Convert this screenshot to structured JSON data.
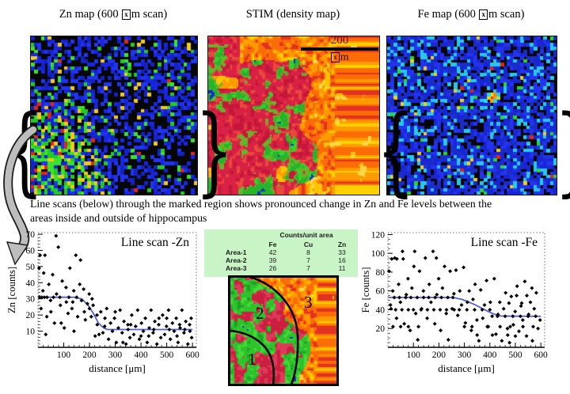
{
  "figure": {
    "maps": {
      "zn_title": {
        "pre": "Zn map  (600 ",
        "micro_box": "x",
        "post": "m scan)"
      },
      "stim_title": "STIM (density map)",
      "fe_title": {
        "pre": "Fe map  (600 ",
        "micro_box": "x",
        "post": "m scan)"
      },
      "scale_bar": {
        "value": "200",
        "micro_box": "x",
        "unit": "m"
      }
    },
    "braces": {
      "open": "{",
      "close": "}"
    },
    "caption_line1": "Line scans (below) through the marked region shows pronounced change in Zn and Fe levels between the",
    "caption_line2": "areas inside and outside of hippocampus",
    "area_table": {
      "title": "Counts/unit area",
      "columns": [
        "Fe",
        "Cu",
        "Zn"
      ],
      "rows": [
        {
          "label": "Area-1",
          "values": [
            42,
            8,
            33
          ]
        },
        {
          "label": "Area-2",
          "values": [
            39,
            7,
            16
          ]
        },
        {
          "label": "Area-3",
          "values": [
            26,
            7,
            11
          ]
        }
      ],
      "bg_color": "#c9f5c6"
    },
    "region_map": {
      "labels": [
        "1",
        "2",
        "3"
      ]
    }
  },
  "colors": {
    "marker": "#000000",
    "fit_line": "#5560d4",
    "table_bg": "#c9f5c6",
    "scalebar_number": "#6b1010",
    "map_border": "#111111"
  },
  "map_palettes": {
    "zn_map": {
      "background": "#060606",
      "blue": [
        "#1626e4",
        "#2134f2",
        "#1422c4"
      ],
      "green": [
        "#22cc22",
        "#3ce32e"
      ],
      "yellow": "#f2ca1c",
      "red": "#e4261a"
    },
    "fe_map": {
      "background": "#060606",
      "blue": [
        "#1724d8",
        "#2333f0",
        "#1b2cc8"
      ],
      "cyan": "#27c8e8",
      "green": "#2ad82a",
      "yellow": "#f0d020",
      "red": "#e02810",
      "hotspot": [
        "#ff2600",
        "#ff9900",
        "#ffe400",
        "#ff8400",
        "#ffd400",
        "#ffa000",
        "#bfe52a",
        "#2ad8e8",
        "#27c8e8"
      ]
    },
    "stim_map": {
      "crimson": [
        "#c21738",
        "#d92045",
        "#e84a3a"
      ],
      "green": [
        "#35d32e",
        "#27b32a",
        "#6faf28"
      ],
      "blue": "#1b2ad0",
      "orange": [
        "#e23222",
        "#fb6c07",
        "#ff9b00",
        "#ffd000",
        "#ffd84a",
        "#ffc400"
      ]
    },
    "region_map": {
      "crimson": [
        "#cc1f40",
        "#dd3a5a"
      ],
      "green": [
        "#2ec22c",
        "#46da36",
        "#1ea122"
      ],
      "blue": "#1b2ad0",
      "orange": [
        "#e23222",
        "#fb6c07",
        "#ff9b00",
        "#ffd000",
        "#ffd84a"
      ]
    }
  },
  "chart_data": [
    {
      "type": "scatter",
      "title": "Line scan -Zn",
      "xlabel": "distance [μm]",
      "ylabel": "Zn [counts]",
      "xlim": [
        0,
        615
      ],
      "ylim": [
        0,
        71
      ],
      "xticks": [
        100,
        200,
        300,
        400,
        500,
        600
      ],
      "yticks": [
        10,
        20,
        30,
        40,
        50,
        60,
        70
      ],
      "x_minor_step": 20,
      "y_minor_step": 2,
      "marker": "diamond",
      "points": [
        [
          4,
          49
        ],
        [
          12,
          24
        ],
        [
          19,
          35
        ],
        [
          27,
          57
        ],
        [
          34,
          19
        ],
        [
          42,
          39
        ],
        [
          49,
          29
        ],
        [
          57,
          45
        ],
        [
          64,
          15
        ],
        [
          70,
          69
        ],
        [
          72,
          33
        ],
        [
          79,
          62
        ],
        [
          87,
          26
        ],
        [
          94,
          41
        ],
        [
          102,
          12
        ],
        [
          109,
          37
        ],
        [
          117,
          21
        ],
        [
          124,
          49
        ],
        [
          132,
          24
        ],
        [
          139,
          35
        ],
        [
          140,
          10
        ],
        [
          147,
          57
        ],
        [
          154,
          19
        ],
        [
          162,
          39
        ],
        [
          165,
          54
        ],
        [
          169,
          29
        ],
        [
          177,
          36
        ],
        [
          184,
          17
        ],
        [
          192,
          27
        ],
        [
          199,
          33
        ],
        [
          207,
          19
        ],
        [
          210,
          30
        ],
        [
          214,
          26
        ],
        [
          222,
          7
        ],
        [
          229,
          20
        ],
        [
          237,
          8
        ],
        [
          244,
          22
        ],
        [
          252,
          9
        ],
        [
          259,
          13
        ],
        [
          267,
          24
        ],
        [
          274,
          5
        ],
        [
          282,
          15
        ],
        [
          289,
          10
        ],
        [
          297,
          18
        ],
        [
          304,
          3
        ],
        [
          312,
          12
        ],
        [
          319,
          23
        ],
        [
          327,
          9
        ],
        [
          334,
          16
        ],
        [
          342,
          2
        ],
        [
          349,
          14
        ],
        [
          357,
          6
        ],
        [
          364,
          20
        ],
        [
          372,
          8
        ],
        [
          379,
          13
        ],
        [
          387,
          23
        ],
        [
          394,
          5
        ],
        [
          402,
          15
        ],
        [
          409,
          10
        ],
        [
          417,
          18
        ],
        [
          424,
          3
        ],
        [
          432,
          12
        ],
        [
          439,
          23
        ],
        [
          447,
          9
        ],
        [
          454,
          16
        ],
        [
          462,
          2
        ],
        [
          469,
          14
        ],
        [
          477,
          6
        ],
        [
          484,
          20
        ],
        [
          492,
          8
        ],
        [
          499,
          13
        ],
        [
          507,
          23
        ],
        [
          514,
          5
        ],
        [
          522,
          15
        ],
        [
          529,
          10
        ],
        [
          537,
          18
        ],
        [
          544,
          3
        ],
        [
          552,
          12
        ],
        [
          559,
          23
        ],
        [
          567,
          9
        ],
        [
          574,
          16
        ],
        [
          582,
          2
        ],
        [
          589,
          14
        ],
        [
          597,
          6
        ],
        [
          30,
          8
        ],
        [
          22,
          46
        ],
        [
          8,
          57
        ],
        [
          6,
          31
        ],
        [
          15,
          31
        ],
        [
          25,
          31
        ],
        [
          35,
          31
        ],
        [
          50,
          22
        ],
        [
          60,
          31
        ],
        [
          85,
          31
        ],
        [
          110,
          28
        ],
        [
          120,
          31
        ],
        [
          135,
          28
        ],
        [
          150,
          31
        ],
        [
          90,
          15
        ],
        [
          180,
          22
        ],
        [
          200,
          24
        ],
        [
          230,
          14
        ],
        [
          260,
          18
        ],
        [
          300,
          22
        ],
        [
          350,
          11
        ],
        [
          400,
          7
        ],
        [
          450,
          11
        ],
        [
          500,
          18
        ],
        [
          550,
          14
        ],
        [
          590,
          10
        ],
        [
          595,
          18
        ],
        [
          330,
          3
        ],
        [
          360,
          14
        ],
        [
          430,
          7
        ],
        [
          470,
          18
        ],
        [
          510,
          11
        ],
        [
          540,
          7
        ],
        [
          570,
          11
        ]
      ],
      "fit_line": {
        "points": [
          [
            0,
            31
          ],
          [
            140,
            31
          ],
          [
            170,
            30
          ],
          [
            195,
            26
          ],
          [
            215,
            21
          ],
          [
            235,
            15
          ],
          [
            255,
            12
          ],
          [
            270,
            11
          ],
          [
            600,
            11
          ]
        ]
      }
    },
    {
      "type": "scatter",
      "title": "Line scan -Fe",
      "xlabel": "distance [μm]",
      "ylabel": "Fe [counts]",
      "xlim": [
        0,
        615
      ],
      "ylim": [
        0,
        122
      ],
      "xticks": [
        100,
        200,
        300,
        400,
        500,
        600
      ],
      "yticks": [
        20,
        40,
        60,
        80,
        100,
        120
      ],
      "x_minor_step": 20,
      "y_minor_step": 5,
      "marker": "diamond",
      "points": [
        [
          4,
          81
        ],
        [
          12,
          41
        ],
        [
          19,
          60
        ],
        [
          27,
          95
        ],
        [
          34,
          31
        ],
        [
          42,
          67
        ],
        [
          49,
          48
        ],
        [
          57,
          102
        ],
        [
          64,
          25
        ],
        [
          72,
          56
        ],
        [
          79,
          73
        ],
        [
          87,
          18
        ],
        [
          94,
          63
        ],
        [
          102,
          86
        ],
        [
          105,
          102
        ],
        [
          109,
          36
        ],
        [
          117,
          8
        ],
        [
          124,
          81
        ],
        [
          132,
          41
        ],
        [
          139,
          60
        ],
        [
          147,
          95
        ],
        [
          154,
          31
        ],
        [
          162,
          67
        ],
        [
          169,
          48
        ],
        [
          177,
          102
        ],
        [
          184,
          25
        ],
        [
          190,
          95
        ],
        [
          192,
          56
        ],
        [
          199,
          73
        ],
        [
          207,
          18
        ],
        [
          214,
          63
        ],
        [
          222,
          86
        ],
        [
          229,
          36
        ],
        [
          237,
          8
        ],
        [
          244,
          81
        ],
        [
          252,
          41
        ],
        [
          259,
          57
        ],
        [
          267,
          82
        ],
        [
          274,
          34
        ],
        [
          282,
          60
        ],
        [
          289,
          45
        ],
        [
          297,
          85
        ],
        [
          304,
          26
        ],
        [
          312,
          48
        ],
        [
          319,
          60
        ],
        [
          327,
          18
        ],
        [
          334,
          51
        ],
        [
          342,
          67
        ],
        [
          349,
          29
        ],
        [
          357,
          7
        ],
        [
          364,
          61
        ],
        [
          372,
          31
        ],
        [
          379,
          45
        ],
        [
          387,
          71
        ],
        [
          394,
          22
        ],
        [
          402,
          48
        ],
        [
          409,
          33
        ],
        [
          417,
          73
        ],
        [
          424,
          14
        ],
        [
          432,
          35
        ],
        [
          439,
          48
        ],
        [
          447,
          7
        ],
        [
          454,
          41
        ],
        [
          462,
          58
        ],
        [
          469,
          20
        ],
        [
          477,
          5
        ],
        [
          484,
          54
        ],
        [
          492,
          24
        ],
        [
          499,
          38
        ],
        [
          507,
          65
        ],
        [
          514,
          17
        ],
        [
          522,
          44
        ],
        [
          529,
          29
        ],
        [
          537,
          70
        ],
        [
          544,
          12
        ],
        [
          552,
          35
        ],
        [
          559,
          48
        ],
        [
          567,
          7
        ],
        [
          574,
          41
        ],
        [
          582,
          58
        ],
        [
          589,
          20
        ],
        [
          597,
          29
        ],
        [
          15,
          94
        ],
        [
          35,
          94
        ],
        [
          60,
          94
        ],
        [
          25,
          53
        ],
        [
          45,
          53
        ],
        [
          70,
          53
        ],
        [
          90,
          53
        ],
        [
          115,
          53
        ],
        [
          140,
          53
        ],
        [
          160,
          53
        ],
        [
          185,
          53
        ],
        [
          210,
          53
        ],
        [
          235,
          53
        ],
        [
          255,
          53
        ],
        [
          10,
          45
        ],
        [
          30,
          40
        ],
        [
          55,
          40
        ],
        [
          80,
          40
        ],
        [
          100,
          40
        ],
        [
          130,
          40
        ],
        [
          155,
          40
        ],
        [
          180,
          40
        ],
        [
          205,
          40
        ],
        [
          230,
          40
        ],
        [
          20,
          22
        ],
        [
          50,
          22
        ],
        [
          80,
          22
        ],
        [
          120,
          22
        ],
        [
          260,
          40
        ],
        [
          280,
          40
        ],
        [
          310,
          40
        ],
        [
          340,
          40
        ],
        [
          370,
          40
        ],
        [
          400,
          40
        ],
        [
          430,
          33
        ],
        [
          460,
          33
        ],
        [
          490,
          33
        ],
        [
          520,
          33
        ],
        [
          550,
          33
        ],
        [
          580,
          33
        ],
        [
          300,
          22
        ],
        [
          330,
          22
        ],
        [
          390,
          22
        ],
        [
          440,
          22
        ],
        [
          480,
          22
        ],
        [
          530,
          22
        ],
        [
          570,
          22
        ],
        [
          350,
          13
        ],
        [
          410,
          13
        ],
        [
          470,
          13
        ],
        [
          500,
          12
        ],
        [
          545,
          55
        ],
        [
          565,
          63
        ],
        [
          505,
          55
        ],
        [
          475,
          47
        ],
        [
          525,
          47
        ]
      ],
      "fit_line": {
        "points": [
          [
            0,
            53
          ],
          [
            240,
            53
          ],
          [
            265,
            52.5
          ],
          [
            290,
            51
          ],
          [
            315,
            48.5
          ],
          [
            340,
            45.5
          ],
          [
            365,
            42
          ],
          [
            390,
            38.5
          ],
          [
            410,
            36
          ],
          [
            430,
            34
          ],
          [
            445,
            33.2
          ],
          [
            600,
            33
          ]
        ]
      }
    }
  ]
}
